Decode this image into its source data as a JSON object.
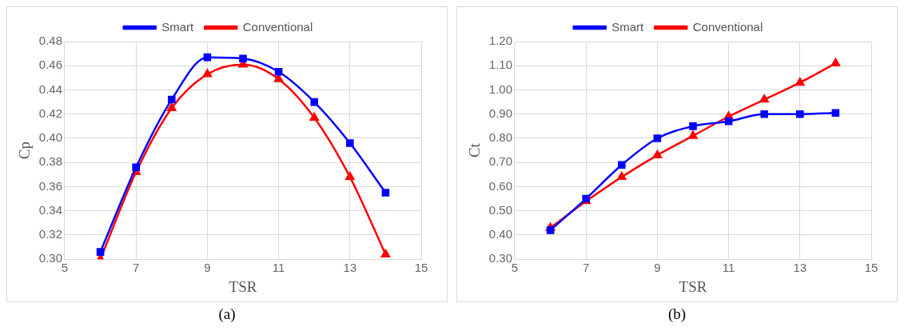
{
  "chart_data": [
    {
      "type": "line",
      "xlabel": "TSR",
      "ylabel": "Cp",
      "x": [
        6,
        7,
        8,
        9,
        10,
        11,
        12,
        13,
        14
      ],
      "xlim": [
        5,
        15
      ],
      "xticks": [
        5,
        7,
        9,
        11,
        13,
        15
      ],
      "ylim": [
        0.3,
        0.48
      ],
      "yticks": [
        {
          "value": 0.3,
          "label": "0.30"
        },
        {
          "value": 0.32,
          "label": "0.32"
        },
        {
          "value": 0.34,
          "label": "0.34"
        },
        {
          "value": 0.36,
          "label": "0.36"
        },
        {
          "value": 0.38,
          "label": "0.38"
        },
        {
          "value": 0.4,
          "label": "0.40"
        },
        {
          "value": 0.42,
          "label": "0.42"
        },
        {
          "value": 0.44,
          "label": "0.44"
        },
        {
          "value": 0.46,
          "label": "0.46"
        },
        {
          "value": 0.48,
          "label": "0.48"
        }
      ],
      "grid": true,
      "legend": "top",
      "annotations": [
        "(a)"
      ],
      "series": [
        {
          "name": "Conventional",
          "color": "#ff0000",
          "marker": "triangle",
          "values": [
            0.3,
            0.372,
            0.425,
            0.453,
            0.461,
            0.449,
            0.417,
            0.368,
            0.304
          ]
        },
        {
          "name": "Smart",
          "color": "#0000ff",
          "marker": "square",
          "values": [
            0.306,
            0.376,
            0.432,
            0.467,
            0.466,
            0.455,
            0.43,
            0.396,
            0.355
          ]
        }
      ]
    },
    {
      "type": "line",
      "xlabel": "TSR",
      "ylabel": "Ct",
      "x": [
        6,
        7,
        8,
        9,
        10,
        11,
        12,
        13,
        14
      ],
      "xlim": [
        5,
        15
      ],
      "xticks": [
        5,
        7,
        9,
        11,
        13,
        15
      ],
      "ylim": [
        0.3,
        1.2
      ],
      "yticks": [
        {
          "value": 0.3,
          "label": "0.30"
        },
        {
          "value": 0.4,
          "label": "0.40"
        },
        {
          "value": 0.5,
          "label": "0.50"
        },
        {
          "value": 0.6,
          "label": "0.60"
        },
        {
          "value": 0.7,
          "label": "0.70"
        },
        {
          "value": 0.8,
          "label": "0.80"
        },
        {
          "value": 0.9,
          "label": "0.90"
        },
        {
          "value": 1.0,
          "label": "1.00"
        },
        {
          "value": 1.1,
          "label": "1.10"
        },
        {
          "value": 1.2,
          "label": "1.20"
        }
      ],
      "grid": true,
      "legend": "top",
      "annotations": [
        "(b)"
      ],
      "series": [
        {
          "name": "Conventional",
          "color": "#ff0000",
          "marker": "triangle",
          "values": [
            0.43,
            0.54,
            0.64,
            0.73,
            0.81,
            0.89,
            0.96,
            1.03,
            1.11
          ]
        },
        {
          "name": "Smart",
          "color": "#0000ff",
          "marker": "square",
          "values": [
            0.42,
            0.55,
            0.69,
            0.8,
            0.85,
            0.87,
            0.9,
            0.9,
            0.905
          ]
        }
      ]
    }
  ]
}
